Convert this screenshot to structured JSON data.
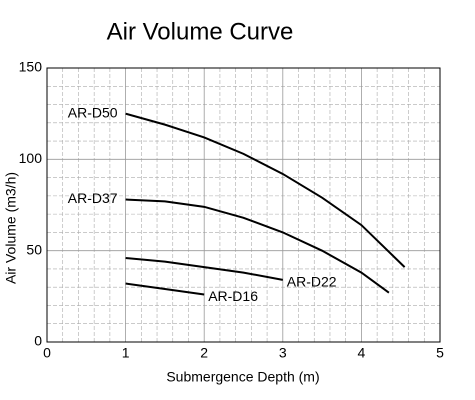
{
  "chart_data": {
    "type": "line",
    "title": "Air Volume Curve",
    "x_label": "Submergence Depth (m)",
    "y_label": "Air Volume (m3/h)",
    "xlim": [
      0,
      5
    ],
    "xticks": [
      0,
      1,
      2,
      3,
      4,
      5
    ],
    "ylim": [
      0,
      150
    ],
    "yticks": [
      0,
      50,
      100,
      150
    ],
    "grid": true,
    "series": [
      {
        "name": "AR-D50",
        "color": "#000000",
        "x": [
          1,
          1.5,
          2,
          2.5,
          3,
          3.5,
          4,
          4.55
        ],
        "values": [
          125,
          119,
          112,
          103,
          92,
          79,
          64,
          41
        ]
      },
      {
        "name": "AR-D37",
        "color": "#000000",
        "x": [
          1,
          1.5,
          2,
          2.5,
          3,
          3.5,
          4,
          4.35
        ],
        "values": [
          78,
          77,
          74,
          68,
          60,
          50,
          38,
          27
        ]
      },
      {
        "name": "AR-D22",
        "color": "#000000",
        "x": [
          1,
          1.5,
          2,
          2.5,
          3
        ],
        "values": [
          46,
          44,
          41,
          38,
          34
        ]
      },
      {
        "name": "AR-D16",
        "color": "#000000",
        "x": [
          1,
          1.5,
          2
        ],
        "values": [
          32,
          29,
          26
        ]
      }
    ]
  }
}
